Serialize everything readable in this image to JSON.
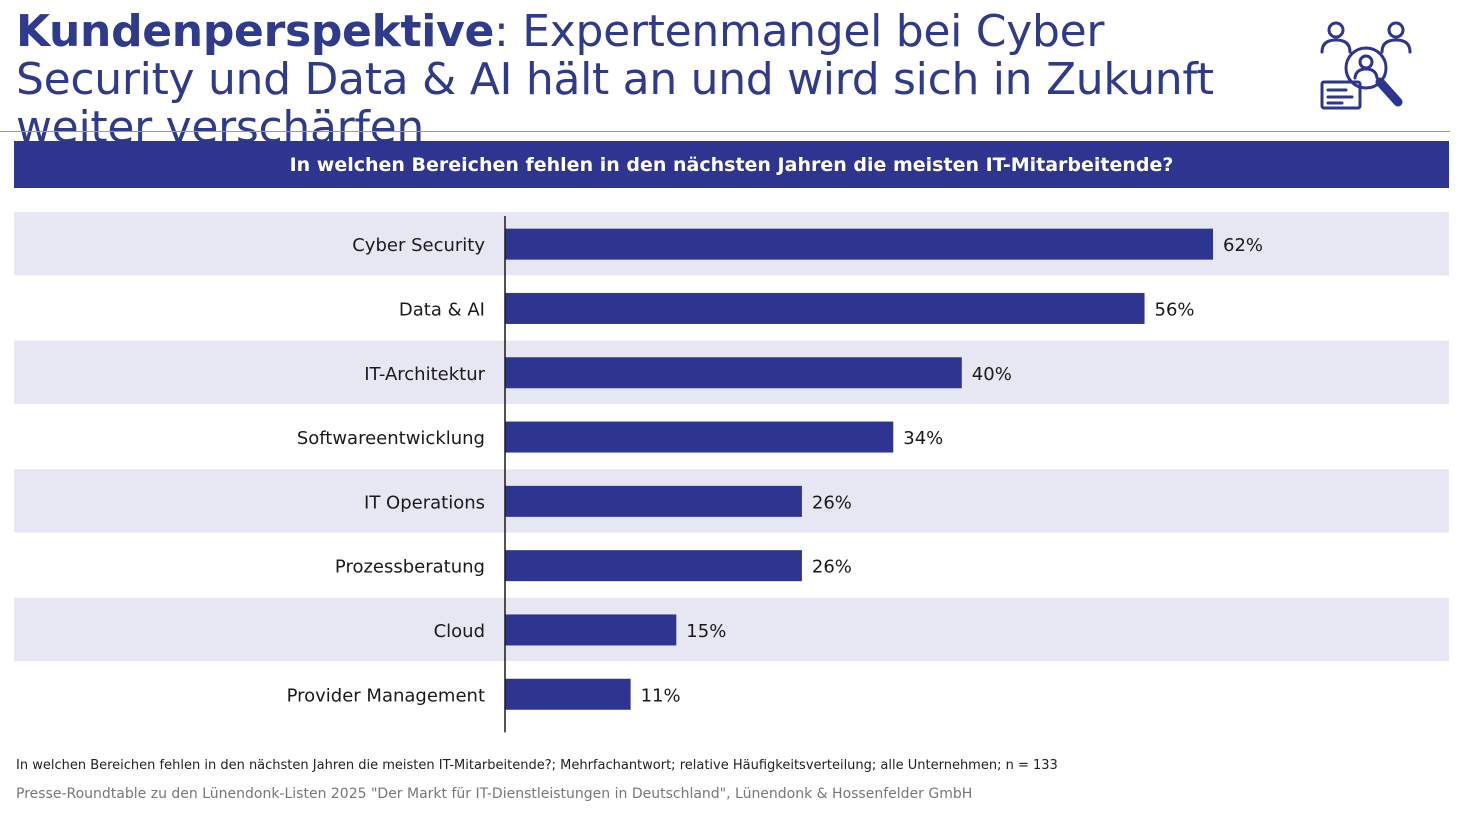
{
  "header": {
    "title_bold": "Kundenperspektive",
    "title_rest": ": Expertenmangel bei Cyber Security und Data & AI hält an und wird sich in Zukunft weiter verschärfen"
  },
  "logo": {
    "icon": "people-search-icon"
  },
  "colors": {
    "brand": "#2e3590",
    "bar": "#2e3590",
    "band": "#e6e7f3",
    "title": "#2e3a8c"
  },
  "chart_data": {
    "type": "bar",
    "orientation": "horizontal",
    "title": "In welchen Bereichen fehlen in den nächsten Jahren die meisten IT-Mitarbeitende?",
    "categories": [
      "Cyber Security",
      "Data & AI",
      "IT-Architektur",
      "Softwareentwicklung",
      "IT Operations",
      "Prozessberatung",
      "Cloud",
      "Provider Management"
    ],
    "values": [
      62,
      56,
      40,
      34,
      26,
      26,
      15,
      11
    ],
    "value_labels": [
      "62%",
      "56%",
      "40%",
      "34%",
      "26%",
      "26%",
      "15%",
      "11%"
    ],
    "unit": "%",
    "xlim": [
      0,
      100
    ],
    "grid": false,
    "legend": "none",
    "alternating_bands": true
  },
  "footer": {
    "note": "In welchen Bereichen fehlen in den nächsten Jahren die meisten IT-Mitarbeitende?; Mehrfachantwort; relative Häufigkeitsverteilung; alle Unternehmen; n = 133",
    "source": "Presse-Roundtable zu den Lünendonk-Listen 2025 \"Der Markt für IT-Dienstleistungen in Deutschland\", Lünendonk & Hossenfelder GmbH"
  }
}
